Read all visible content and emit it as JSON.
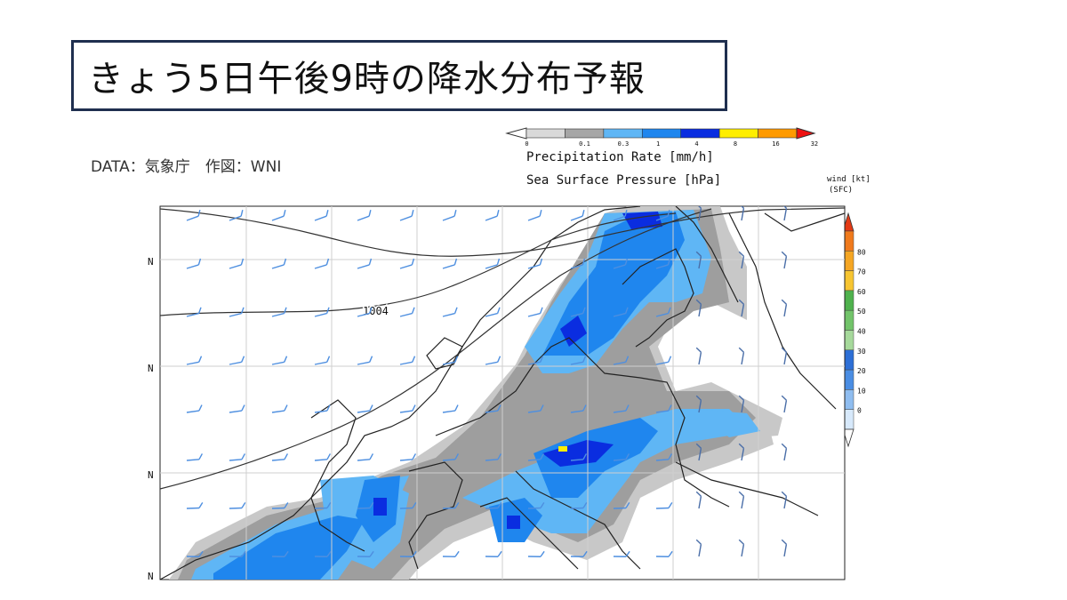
{
  "title": "きょう5日午後9時の降水分布予報",
  "credit": "DATA：気象庁　作図：WNI",
  "legend": {
    "precip_ticks": [
      "0",
      "0.1",
      "0.3",
      "1",
      "4",
      "8",
      "16",
      "32"
    ],
    "precip_label": "Precipitation Rate [mm/h]",
    "pressure_label": "Sea Surface Pressure [hPa]",
    "precip_colors": [
      "#d9d9d9",
      "#a6a6a6",
      "#5fb6f5",
      "#1f86ee",
      "#0a2de0",
      "#ffee00",
      "#ff9a00",
      "#ee1111"
    ]
  },
  "wind_legend": {
    "title_line1": "wind [kt]",
    "title_line2": "(SFC)",
    "ticks": [
      "80",
      "70",
      "60",
      "50",
      "40",
      "30",
      "20",
      "10",
      "0"
    ]
  },
  "map": {
    "lat_labels": [
      "N",
      "N",
      "N",
      "N"
    ],
    "isobar_label": "1004"
  }
}
